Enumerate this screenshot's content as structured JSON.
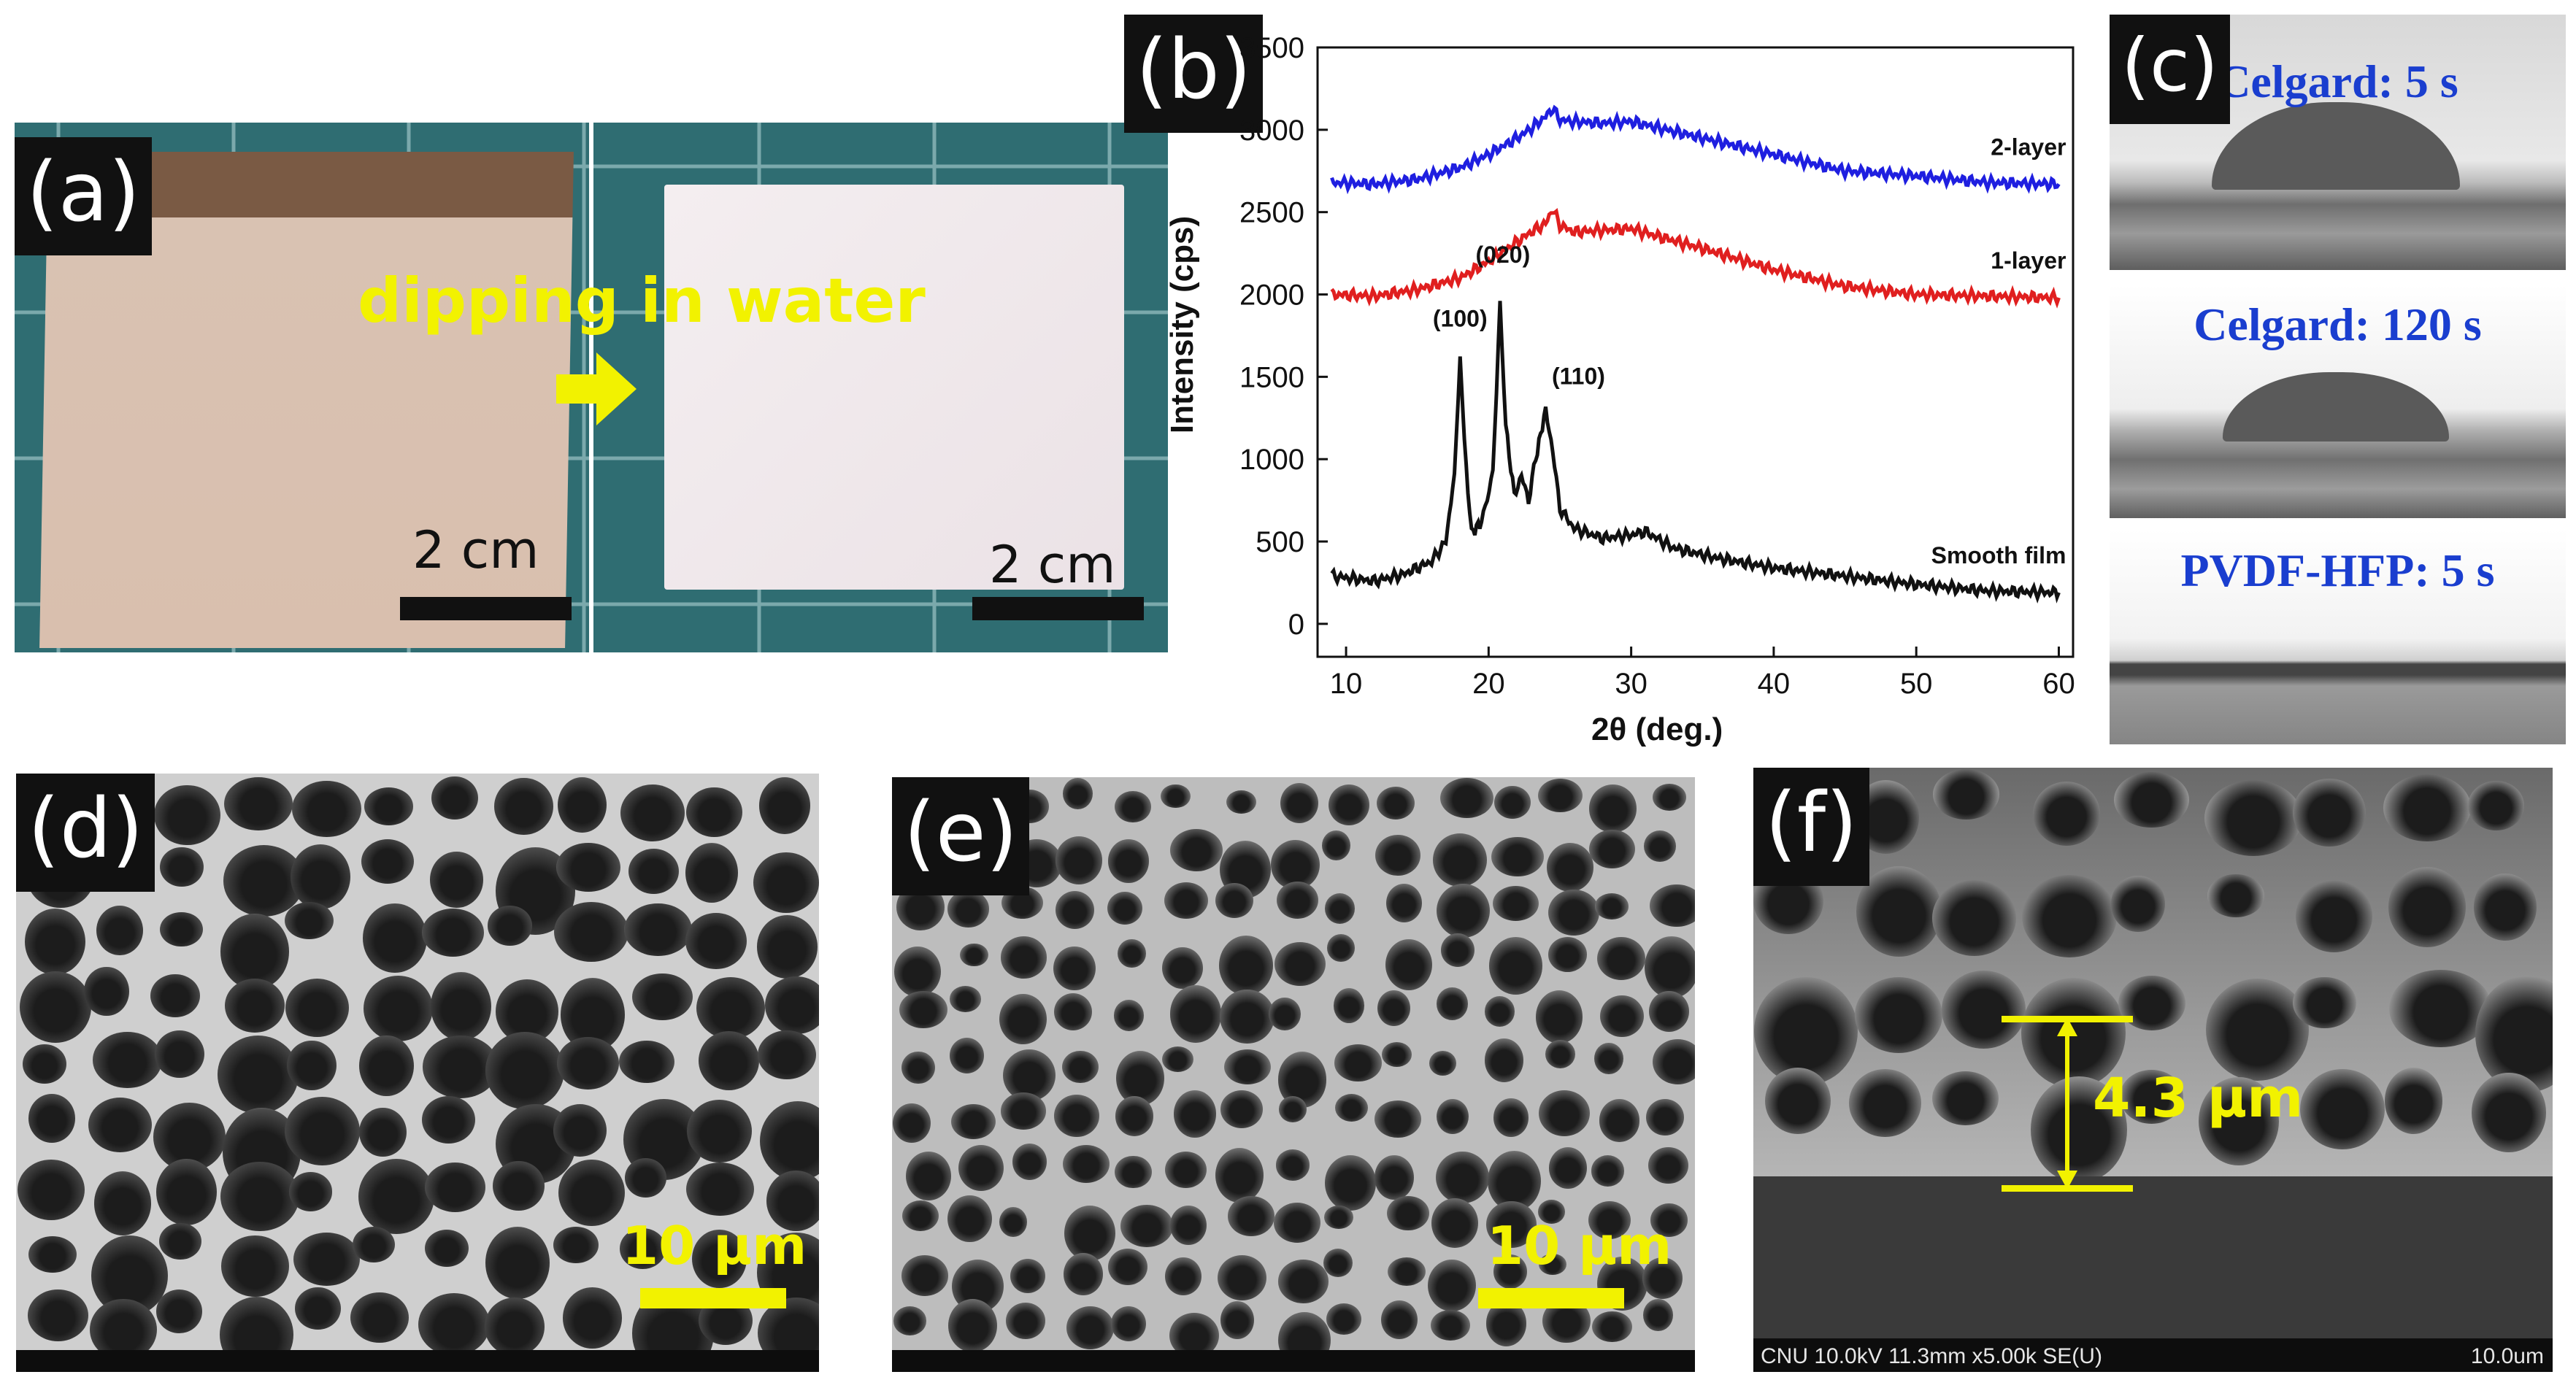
{
  "panels": {
    "a": {
      "tag": "(a)",
      "arrow_text": "dipping in water",
      "scale_left": "2 cm",
      "scale_right": "2 cm"
    },
    "b": {
      "tag": "(b)",
      "ylabel": "Intensity (cps)",
      "xlabel": "2θ (deg.)",
      "xticks": [
        "10",
        "20",
        "30",
        "40",
        "50",
        "60"
      ],
      "yticks": [
        "0",
        "500",
        "1000",
        "1500",
        "2000",
        "2500",
        "3000",
        "3500"
      ],
      "peaks": [
        "(100)",
        "(020)",
        "(110)"
      ]
    },
    "c": {
      "tag": "(c)",
      "labels": [
        "Celgard: 5 s",
        "Celgard: 120 s",
        "PVDF-HFP: 5 s"
      ]
    },
    "d": {
      "tag": "(d)",
      "scale": "10 µm"
    },
    "e": {
      "tag": "(e)",
      "scale": "10 µm"
    },
    "f": {
      "tag": "(f)",
      "thickness": "4.3 µm",
      "footer_info": "CNU 10.0kV 11.3mm x5.00k SE(U)",
      "footer_scale": "10.0um"
    }
  },
  "chart_data": {
    "type": "line",
    "xlabel": "2θ (deg.)",
    "ylabel": "Intensity (cps)",
    "xlim": [
      8,
      61
    ],
    "ylim": [
      -200,
      3500
    ],
    "grid": false,
    "series": [
      {
        "name": "2-layer",
        "color": "#1f1fe0",
        "x": [
          9,
          12,
          15,
          18,
          20,
          22,
          23,
          24,
          24.5,
          25,
          26,
          28,
          30,
          32,
          35,
          40,
          45,
          50,
          55,
          60
        ],
        "y": [
          2680,
          2670,
          2700,
          2770,
          2850,
          2950,
          3010,
          3080,
          3130,
          3060,
          3050,
          3040,
          3050,
          3010,
          2950,
          2850,
          2750,
          2720,
          2680,
          2670
        ]
      },
      {
        "name": "1-layer",
        "color": "#e01f1f",
        "x": [
          9,
          12,
          15,
          18,
          20,
          22,
          23,
          24,
          24.5,
          25,
          26,
          28,
          30,
          32,
          35,
          40,
          45,
          50,
          55,
          60
        ],
        "y": [
          2000,
          1990,
          2030,
          2100,
          2200,
          2320,
          2380,
          2430,
          2520,
          2420,
          2380,
          2390,
          2400,
          2350,
          2280,
          2150,
          2050,
          2000,
          1990,
          1980
        ]
      },
      {
        "name": "Smooth film",
        "color": "#111111",
        "x": [
          9,
          12,
          14,
          16,
          17,
          17.6,
          18,
          18.3,
          18.8,
          19.5,
          20.3,
          20.8,
          21.2,
          21.8,
          22.3,
          22.8,
          23.3,
          24,
          24.5,
          25,
          26,
          28,
          30,
          31,
          33,
          36,
          40,
          45,
          50,
          55,
          60
        ],
        "y": [
          290,
          260,
          300,
          380,
          500,
          900,
          1650,
          1100,
          550,
          620,
          900,
          1950,
          1200,
          780,
          900,
          750,
          1000,
          1300,
          1050,
          700,
          580,
          520,
          540,
          560,
          460,
          400,
          340,
          290,
          240,
          200,
          190
        ]
      }
    ],
    "annotations": [
      {
        "text": "(100)",
        "x": 18.0,
        "y": 1650
      },
      {
        "text": "(020)",
        "x": 21.0,
        "y": 1950
      },
      {
        "text": "(110)",
        "x": 24.0,
        "y": 1300
      }
    ]
  }
}
